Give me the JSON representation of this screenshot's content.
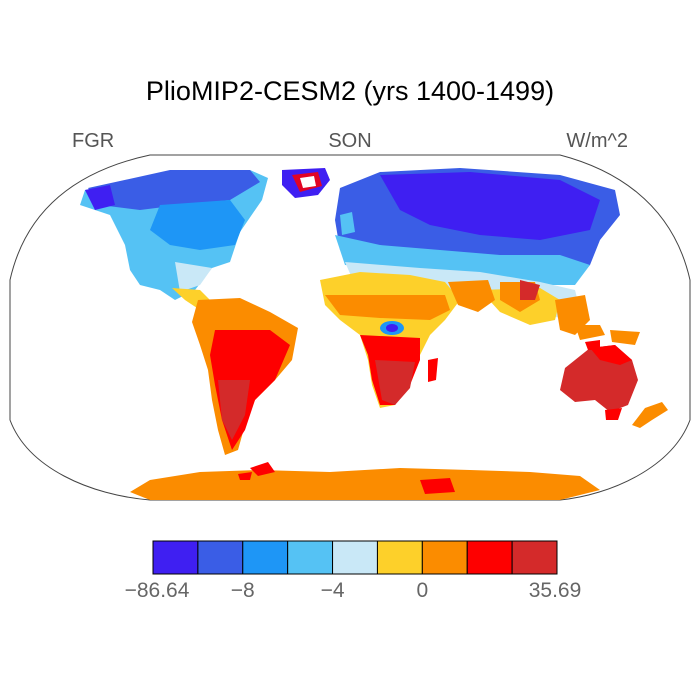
{
  "title": "PlioMIP2-CESM2 (yrs 1400-1499)",
  "field_label": "FGR",
  "season_label": "SON",
  "units_label": "W/m^2",
  "projection": "robinson",
  "colorbar": {
    "colors": [
      "#3f1ff2",
      "#3a5de6",
      "#1e96f6",
      "#55c2f4",
      "#c9e8f7",
      "#fdd02a",
      "#fb8c00",
      "#fe0000",
      "#d42a2a"
    ],
    "labels": [
      "−86.64",
      "−8",
      "−4",
      "0",
      "35.69"
    ]
  }
}
